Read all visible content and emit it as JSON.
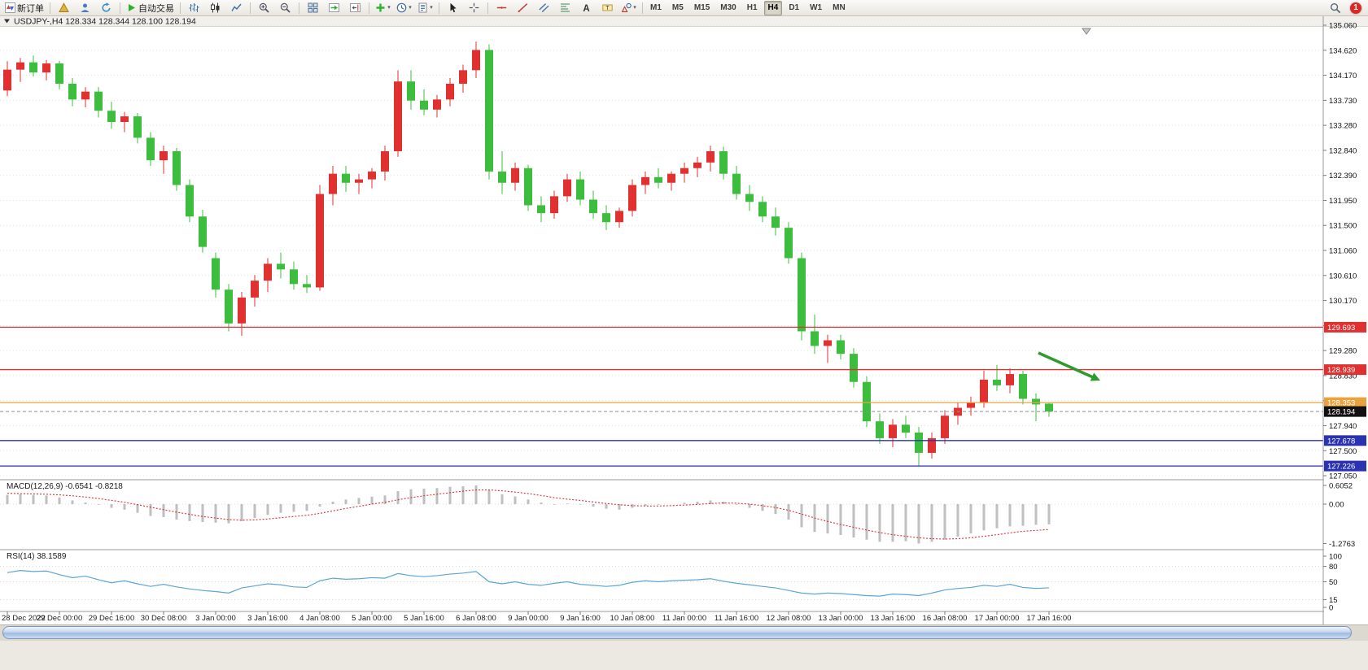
{
  "toolbar": {
    "buttons": [
      {
        "name": "new-order",
        "icon": "new-order",
        "label": "新订单"
      },
      {
        "name": "separator"
      },
      {
        "name": "market",
        "icon": "market"
      },
      {
        "name": "signals",
        "icon": "signals"
      },
      {
        "name": "refresh",
        "icon": "refresh"
      },
      {
        "name": "separator"
      },
      {
        "name": "autotrading",
        "icon": "play",
        "label": "自动交易"
      },
      {
        "name": "separator"
      },
      {
        "name": "bar-chart",
        "icon": "bars"
      },
      {
        "name": "candlestick-chart",
        "icon": "candles"
      },
      {
        "name": "line-chart",
        "icon": "line"
      },
      {
        "name": "separator"
      },
      {
        "name": "zoom-in",
        "icon": "zoom-in"
      },
      {
        "name": "zoom-out",
        "icon": "zoom-out"
      },
      {
        "name": "separator"
      },
      {
        "name": "tile-windows",
        "icon": "tile"
      },
      {
        "name": "auto-scroll",
        "icon": "autoscroll"
      },
      {
        "name": "chart-shift",
        "icon": "shift"
      },
      {
        "name": "separator"
      },
      {
        "name": "indicators",
        "icon": "indicators",
        "dropdown": true
      },
      {
        "name": "periods",
        "icon": "clock",
        "dropdown": true
      },
      {
        "name": "templates",
        "icon": "template",
        "dropdown": true
      },
      {
        "name": "separator"
      },
      {
        "name": "cursor",
        "icon": "cursor"
      },
      {
        "name": "crosshair",
        "icon": "crosshair"
      },
      {
        "name": "separator"
      },
      {
        "name": "horizontal-line",
        "icon": "hline"
      },
      {
        "name": "trendline",
        "icon": "tline"
      },
      {
        "name": "equidistant-channel",
        "icon": "channel"
      },
      {
        "name": "fibonacci",
        "icon": "fibo"
      },
      {
        "name": "text",
        "icon": "text"
      },
      {
        "name": "text-label",
        "icon": "label"
      },
      {
        "name": "arrow-tools",
        "icon": "shapes",
        "dropdown": true
      },
      {
        "name": "separator"
      }
    ],
    "timeframes": [
      "M1",
      "M5",
      "M15",
      "M30",
      "H1",
      "H4",
      "D1",
      "W1",
      "MN"
    ],
    "active_timeframe": "H4",
    "notification_count": "1"
  },
  "chart": {
    "header": "USDJPY-,H4 128.334 128.344 128.100 128.194",
    "price_axis_labels": [
      "135.060",
      "134.620",
      "134.170",
      "133.730",
      "133.280",
      "132.840",
      "132.390",
      "131.950",
      "131.500",
      "131.060",
      "130.610",
      "130.170",
      "129.720",
      "129.280",
      "128.830",
      "128.390",
      "127.940",
      "127.500",
      "127.050"
    ],
    "hlines": [
      {
        "price": 129.693,
        "label": "129.693",
        "color": "#e03030"
      },
      {
        "price": 128.939,
        "label": "128.939",
        "color": "#e03030"
      },
      {
        "price": 128.353,
        "label": "128.353",
        "color": "#e8a33d"
      },
      {
        "price": 127.678,
        "label": "127.678",
        "color": "#2b32b2"
      },
      {
        "price": 127.226,
        "label": "127.226",
        "color": "#2b32b2"
      }
    ],
    "current_price": {
      "value": 128.194,
      "label": "128.194",
      "badge_color": "#111111"
    },
    "colors": {
      "bullish": "#e03030",
      "bearish": "#3dbd3d"
    }
  },
  "chart_data": {
    "type": "candlestick",
    "symbol": "USDJPY-",
    "period": "H4",
    "ohlc": [
      [
        133.9,
        134.42,
        133.8,
        134.27
      ],
      [
        134.27,
        134.48,
        134.05,
        134.4
      ],
      [
        134.4,
        134.52,
        134.15,
        134.22
      ],
      [
        134.22,
        134.44,
        134.08,
        134.38
      ],
      [
        134.38,
        134.43,
        133.92,
        134.02
      ],
      [
        134.02,
        134.12,
        133.62,
        133.74
      ],
      [
        133.74,
        133.96,
        133.6,
        133.88
      ],
      [
        133.88,
        133.96,
        133.42,
        133.54
      ],
      [
        133.54,
        133.7,
        133.22,
        133.34
      ],
      [
        133.34,
        133.52,
        133.16,
        133.44
      ],
      [
        133.44,
        133.5,
        132.96,
        133.06
      ],
      [
        133.06,
        133.16,
        132.56,
        132.66
      ],
      [
        132.66,
        132.92,
        132.42,
        132.82
      ],
      [
        132.82,
        132.88,
        132.12,
        132.22
      ],
      [
        132.22,
        132.32,
        131.56,
        131.66
      ],
      [
        131.66,
        131.78,
        131.02,
        131.12
      ],
      [
        130.92,
        131.02,
        130.22,
        130.36
      ],
      [
        130.36,
        130.46,
        129.62,
        129.76
      ],
      [
        129.76,
        130.32,
        129.54,
        130.22
      ],
      [
        130.22,
        130.62,
        130.06,
        130.52
      ],
      [
        130.52,
        130.92,
        130.32,
        130.82
      ],
      [
        130.82,
        131.02,
        130.56,
        130.72
      ],
      [
        130.72,
        130.86,
        130.36,
        130.46
      ],
      [
        130.46,
        130.62,
        130.3,
        130.4
      ],
      [
        130.4,
        132.22,
        130.34,
        132.06
      ],
      [
        132.06,
        132.56,
        131.86,
        132.42
      ],
      [
        132.42,
        132.56,
        132.1,
        132.26
      ],
      [
        132.26,
        132.42,
        132.06,
        132.32
      ],
      [
        132.32,
        132.52,
        132.16,
        132.46
      ],
      [
        132.46,
        132.92,
        132.3,
        132.82
      ],
      [
        132.82,
        134.26,
        132.72,
        134.06
      ],
      [
        134.06,
        134.26,
        133.56,
        133.72
      ],
      [
        133.72,
        133.92,
        133.46,
        133.56
      ],
      [
        133.56,
        133.82,
        133.42,
        133.74
      ],
      [
        133.74,
        134.12,
        133.62,
        134.02
      ],
      [
        134.02,
        134.36,
        133.86,
        134.26
      ],
      [
        134.26,
        134.77,
        134.12,
        134.62
      ],
      [
        134.62,
        134.72,
        132.32,
        132.46
      ],
      [
        132.46,
        132.82,
        132.06,
        132.26
      ],
      [
        132.26,
        132.62,
        132.12,
        132.52
      ],
      [
        132.52,
        132.58,
        131.76,
        131.86
      ],
      [
        131.86,
        132.02,
        131.56,
        131.72
      ],
      [
        131.72,
        132.12,
        131.62,
        132.02
      ],
      [
        132.02,
        132.42,
        131.92,
        132.32
      ],
      [
        132.32,
        132.46,
        131.86,
        131.96
      ],
      [
        131.96,
        132.12,
        131.62,
        131.72
      ],
      [
        131.72,
        131.86,
        131.42,
        131.56
      ],
      [
        131.56,
        131.82,
        131.46,
        131.76
      ],
      [
        131.76,
        132.32,
        131.66,
        132.22
      ],
      [
        132.22,
        132.46,
        132.06,
        132.36
      ],
      [
        132.36,
        132.52,
        132.16,
        132.26
      ],
      [
        132.26,
        132.46,
        132.12,
        132.42
      ],
      [
        132.42,
        132.62,
        132.26,
        132.52
      ],
      [
        132.52,
        132.72,
        132.36,
        132.62
      ],
      [
        132.62,
        132.92,
        132.46,
        132.82
      ],
      [
        132.82,
        132.9,
        132.32,
        132.42
      ],
      [
        132.42,
        132.56,
        131.96,
        132.06
      ],
      [
        132.06,
        132.22,
        131.76,
        131.92
      ],
      [
        131.92,
        132.02,
        131.56,
        131.66
      ],
      [
        131.66,
        131.82,
        131.32,
        131.46
      ],
      [
        131.46,
        131.56,
        130.82,
        130.92
      ],
      [
        130.92,
        131.02,
        129.46,
        129.62
      ],
      [
        129.62,
        129.92,
        129.22,
        129.36
      ],
      [
        129.36,
        129.56,
        129.06,
        129.46
      ],
      [
        129.46,
        129.56,
        129.12,
        129.22
      ],
      [
        129.22,
        129.32,
        128.62,
        128.72
      ],
      [
        128.72,
        128.82,
        127.92,
        128.02
      ],
      [
        128.02,
        128.16,
        127.62,
        127.72
      ],
      [
        127.72,
        128.06,
        127.56,
        127.96
      ],
      [
        127.96,
        128.12,
        127.72,
        127.82
      ],
      [
        127.82,
        127.92,
        127.23,
        127.46
      ],
      [
        127.46,
        127.82,
        127.36,
        127.72
      ],
      [
        127.72,
        128.22,
        127.62,
        128.12
      ],
      [
        128.12,
        128.36,
        127.96,
        128.26
      ],
      [
        128.26,
        128.46,
        128.12,
        128.36
      ],
      [
        128.36,
        128.92,
        128.26,
        128.76
      ],
      [
        128.76,
        129.02,
        128.56,
        128.66
      ],
      [
        128.66,
        128.96,
        128.52,
        128.86
      ],
      [
        128.86,
        128.92,
        128.32,
        128.42
      ],
      [
        128.42,
        128.52,
        128.02,
        128.32
      ],
      [
        128.334,
        128.344,
        128.1,
        128.194
      ]
    ],
    "time_labels": [
      {
        "i": 0,
        "t": "28 Dec 2022"
      },
      {
        "i": 4,
        "t": "29 Dec 00:00"
      },
      {
        "i": 8,
        "t": "29 Dec 16:00"
      },
      {
        "i": 12,
        "t": "30 Dec 08:00"
      },
      {
        "i": 16,
        "t": "3 Jan 00:00"
      },
      {
        "i": 20,
        "t": "3 Jan 16:00"
      },
      {
        "i": 24,
        "t": "4 Jan 08:00"
      },
      {
        "i": 28,
        "t": "5 Jan 00:00"
      },
      {
        "i": 32,
        "t": "5 Jan 16:00"
      },
      {
        "i": 36,
        "t": "6 Jan 08:00"
      },
      {
        "i": 40,
        "t": "9 Jan 00:00"
      },
      {
        "i": 44,
        "t": "9 Jan 16:00"
      },
      {
        "i": 48,
        "t": "10 Jan 08:00"
      },
      {
        "i": 52,
        "t": "11 Jan 00:00"
      },
      {
        "i": 56,
        "t": "11 Jan 16:00"
      },
      {
        "i": 60,
        "t": "12 Jan 08:00"
      },
      {
        "i": 64,
        "t": "13 Jan 00:00"
      },
      {
        "i": 68,
        "t": "13 Jan 16:00"
      },
      {
        "i": 72,
        "t": "16 Jan 08:00"
      },
      {
        "i": 76,
        "t": "17 Jan 00:00"
      },
      {
        "i": 80,
        "t": "17 Jan 16:00"
      }
    ],
    "indicators": {
      "macd": {
        "header": "MACD(12,26,9) -0.6541 -0.8218",
        "axis_labels": [
          "0.6052",
          "0.00",
          "-1.2763"
        ],
        "histogram_color": "#bfbfbf",
        "signal_color": "#e03030",
        "values": [
          0.3,
          0.32,
          0.3,
          0.28,
          0.22,
          0.12,
          0.05,
          -0.02,
          -0.12,
          -0.18,
          -0.28,
          -0.38,
          -0.42,
          -0.5,
          -0.55,
          -0.58,
          -0.6,
          -0.62,
          -0.55,
          -0.45,
          -0.35,
          -0.28,
          -0.25,
          -0.22,
          -0.08,
          0.08,
          0.15,
          0.2,
          0.24,
          0.28,
          0.42,
          0.48,
          0.5,
          0.52,
          0.56,
          0.58,
          0.6052,
          0.45,
          0.32,
          0.25,
          0.15,
          0.05,
          -0.02,
          0.02,
          -0.02,
          -0.08,
          -0.15,
          -0.18,
          -0.12,
          -0.05,
          -0.02,
          0.0,
          0.04,
          0.08,
          0.12,
          0.08,
          -0.02,
          -0.12,
          -0.22,
          -0.32,
          -0.5,
          -0.75,
          -0.9,
          -0.95,
          -1.0,
          -1.08,
          -1.15,
          -1.22,
          -1.22,
          -1.2,
          -1.2763,
          -1.22,
          -1.15,
          -1.05,
          -0.95,
          -0.85,
          -0.78,
          -0.72,
          -0.7,
          -0.67,
          -0.6541
        ],
        "signal": [
          0.35,
          0.34,
          0.33,
          0.32,
          0.3,
          0.27,
          0.23,
          0.18,
          0.12,
          0.06,
          -0.02,
          -0.1,
          -0.18,
          -0.26,
          -0.33,
          -0.4,
          -0.45,
          -0.5,
          -0.52,
          -0.51,
          -0.48,
          -0.44,
          -0.4,
          -0.36,
          -0.3,
          -0.22,
          -0.14,
          -0.07,
          0.0,
          0.06,
          0.14,
          0.21,
          0.27,
          0.32,
          0.37,
          0.42,
          0.46,
          0.46,
          0.43,
          0.39,
          0.34,
          0.28,
          0.21,
          0.16,
          0.12,
          0.07,
          0.02,
          -0.02,
          -0.05,
          -0.06,
          -0.06,
          -0.05,
          -0.03,
          -0.01,
          0.02,
          0.04,
          0.03,
          0.0,
          -0.05,
          -0.11,
          -0.2,
          -0.32,
          -0.45,
          -0.56,
          -0.66,
          -0.75,
          -0.84,
          -0.92,
          -0.99,
          -1.04,
          -1.09,
          -1.12,
          -1.13,
          -1.12,
          -1.09,
          -1.04,
          -0.99,
          -0.93,
          -0.88,
          -0.85,
          -0.8218
        ]
      },
      "rsi": {
        "header": "RSI(14) 38.1589",
        "axis_labels": [
          "100",
          "80",
          "50",
          "15",
          "0"
        ],
        "levels": [
          80,
          50,
          15
        ],
        "line_color": "#5aa7d6",
        "values": [
          68,
          72,
          70,
          71,
          64,
          58,
          61,
          54,
          48,
          52,
          46,
          41,
          45,
          40,
          36,
          33,
          31,
          28,
          38,
          42,
          46,
          44,
          40,
          39,
          52,
          57,
          55,
          56,
          58,
          57,
          66,
          62,
          60,
          62,
          65,
          67,
          70,
          50,
          46,
          50,
          45,
          43,
          47,
          50,
          45,
          43,
          41,
          43,
          49,
          52,
          50,
          52,
          53,
          54,
          56,
          51,
          47,
          44,
          41,
          38,
          33,
          28,
          26,
          28,
          27,
          25,
          23,
          22,
          26,
          25,
          23,
          28,
          34,
          37,
          39,
          43,
          41,
          45,
          39,
          37,
          38.1589
        ]
      }
    },
    "annotations": [
      {
        "type": "arrow",
        "color": "#2e9b2e",
        "from": [
          1276,
          434
        ],
        "to": [
          1352,
          468
        ]
      }
    ]
  }
}
